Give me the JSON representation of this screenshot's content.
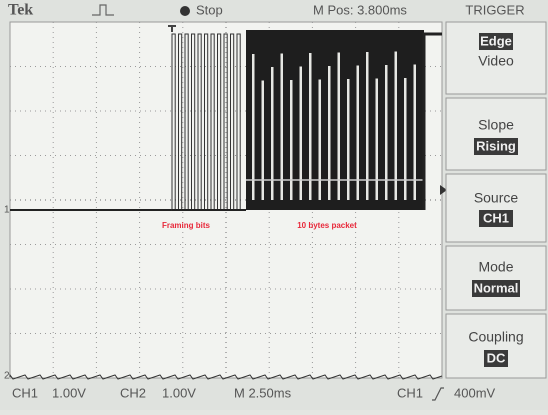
{
  "status_bar": {
    "brand": "Tek",
    "state": "Stop",
    "position": "M Pos: 3.800ms"
  },
  "trigger_menu": {
    "title": "TRIGGER",
    "items": [
      {
        "options": [
          "Edge",
          "Video"
        ]
      },
      {
        "label": "Slope",
        "value": "Rising"
      },
      {
        "label": "Source",
        "value": "CH1"
      },
      {
        "label": "Mode",
        "value": "Normal"
      },
      {
        "label": "Coupling",
        "value": "DC"
      }
    ]
  },
  "screen": {
    "channel_markers": [
      "1",
      "2"
    ],
    "annotations": [
      "Framing bits",
      "10 bytes packet"
    ]
  },
  "status_line": {
    "ch1": "CH1",
    "ch1_scale": "1.00V",
    "ch2": "CH2",
    "ch2_scale": "1.00V",
    "timebase": "M 2.50ms",
    "trigger_source": "CH1",
    "trigger_level": "400mV"
  }
}
